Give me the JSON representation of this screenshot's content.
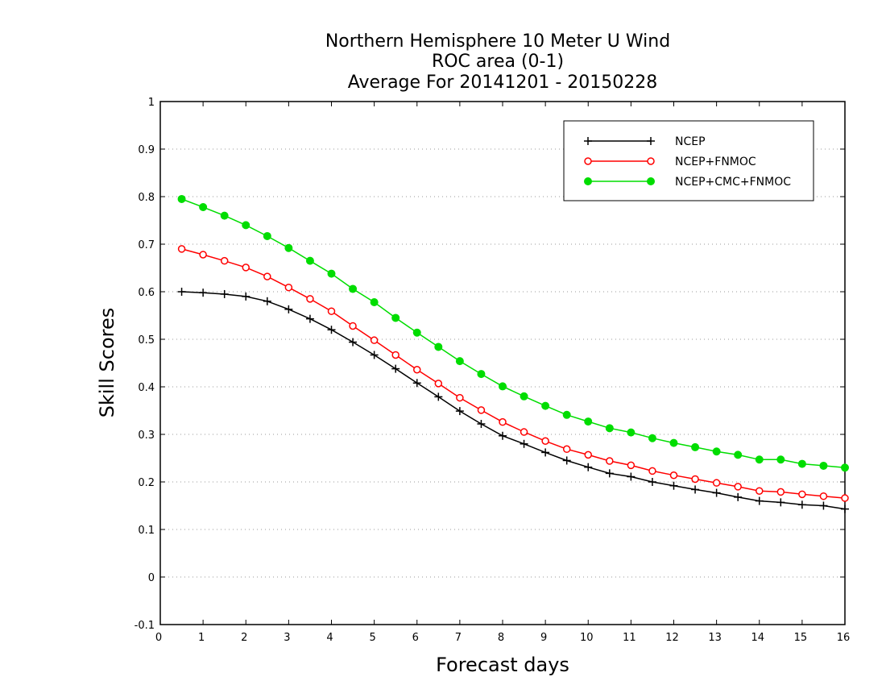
{
  "chart_data": {
    "type": "line",
    "title_lines": [
      "Northern Hemisphere 10 Meter U Wind",
      "ROC area (0-1)",
      "Average For 20141201 - 20150228"
    ],
    "xlabel": "Forecast days",
    "ylabel": "Skill Scores",
    "xlim": [
      0,
      16
    ],
    "ylim": [
      -0.1,
      1
    ],
    "x_ticks": [
      "0",
      "1",
      "2",
      "3",
      "4",
      "5",
      "6",
      "7",
      "8",
      "9",
      "10",
      "11",
      "12",
      "13",
      "14",
      "15",
      "16"
    ],
    "y_ticks": [
      "-0.1",
      "0",
      "0.1",
      "0.2",
      "0.3",
      "0.4",
      "0.5",
      "0.6",
      "0.7",
      "0.8",
      "0.9",
      "1"
    ],
    "grid": "horizontal dotted",
    "legend_position": "top-right",
    "x": [
      0.5,
      1,
      1.5,
      2,
      2.5,
      3,
      3.5,
      4,
      4.5,
      5,
      5.5,
      6,
      6.5,
      7,
      7.5,
      8,
      8.5,
      9,
      9.5,
      10,
      10.5,
      11,
      11.5,
      12,
      12.5,
      13,
      13.5,
      14,
      14.5,
      15,
      15.5,
      16
    ],
    "series": [
      {
        "name": "NCEP",
        "color": "#000000",
        "marker": "plus",
        "values": [
          0.6,
          0.598,
          0.595,
          0.59,
          0.58,
          0.563,
          0.543,
          0.52,
          0.494,
          0.467,
          0.438,
          0.408,
          0.379,
          0.349,
          0.322,
          0.297,
          0.28,
          0.262,
          0.245,
          0.231,
          0.218,
          0.211,
          0.2,
          0.192,
          0.184,
          0.177,
          0.168,
          0.16,
          0.157,
          0.152,
          0.15,
          0.143
        ]
      },
      {
        "name": "NCEP+FNMOC",
        "color": "#ff0000",
        "marker": "open-circle",
        "values": [
          0.69,
          0.678,
          0.665,
          0.651,
          0.632,
          0.609,
          0.585,
          0.559,
          0.528,
          0.498,
          0.467,
          0.436,
          0.407,
          0.377,
          0.351,
          0.326,
          0.305,
          0.286,
          0.269,
          0.257,
          0.244,
          0.235,
          0.223,
          0.214,
          0.206,
          0.198,
          0.19,
          0.181,
          0.179,
          0.174,
          0.17,
          0.166
        ]
      },
      {
        "name": "NCEP+CMC+FNMOC",
        "color": "#00dd00",
        "marker": "filled-circle",
        "values": [
          0.795,
          0.778,
          0.76,
          0.74,
          0.717,
          0.692,
          0.665,
          0.638,
          0.606,
          0.578,
          0.545,
          0.514,
          0.484,
          0.454,
          0.427,
          0.401,
          0.38,
          0.36,
          0.341,
          0.327,
          0.313,
          0.304,
          0.292,
          0.282,
          0.273,
          0.264,
          0.257,
          0.247,
          0.247,
          0.238,
          0.234,
          0.23
        ]
      }
    ]
  }
}
